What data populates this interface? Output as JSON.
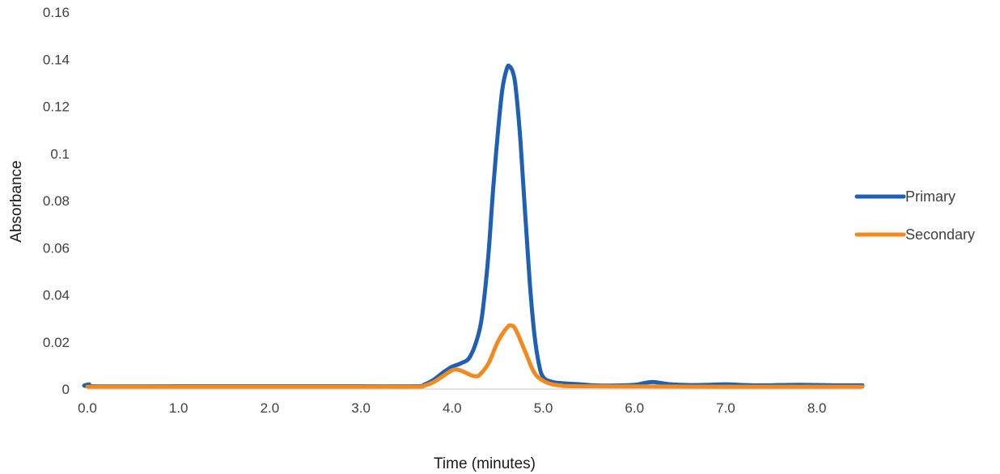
{
  "chart_data": {
    "type": "line",
    "title": "",
    "xlabel": "Time (minutes)",
    "ylabel": "Absorbance",
    "xlim": [
      0,
      8.5
    ],
    "ylim": [
      0,
      0.16
    ],
    "x_ticks": [
      0,
      1,
      2,
      3,
      4,
      5,
      6,
      7,
      8
    ],
    "x_tick_labels": [
      "0.0",
      "1.0",
      "2.0",
      "3.0",
      "4.0",
      "5.0",
      "6.0",
      "7.0",
      "8.0"
    ],
    "y_ticks": [
      0,
      0.02,
      0.04,
      0.06,
      0.08,
      0.1,
      0.12,
      0.14,
      0.16
    ],
    "y_tick_labels": [
      "0",
      "0.02",
      "0.04",
      "0.06",
      "0.08",
      "0.1",
      "0.12",
      "0.14",
      "0.16"
    ],
    "grid": false,
    "legend_position": "right",
    "series": [
      {
        "name": "Primary",
        "color": "#1F5FB4",
        "points": [
          [
            0,
            0.0015
          ],
          [
            0.02,
            0.002
          ],
          [
            0.05,
            0.0012
          ],
          [
            1,
            0.0012
          ],
          [
            2,
            0.0012
          ],
          [
            3,
            0.0012
          ],
          [
            3.6,
            0.0012
          ],
          [
            3.7,
            0.002
          ],
          [
            3.8,
            0.004
          ],
          [
            3.9,
            0.007
          ],
          [
            4.0,
            0.0095
          ],
          [
            4.1,
            0.011
          ],
          [
            4.2,
            0.014
          ],
          [
            4.3,
            0.025
          ],
          [
            4.35,
            0.038
          ],
          [
            4.4,
            0.058
          ],
          [
            4.45,
            0.085
          ],
          [
            4.5,
            0.108
          ],
          [
            4.55,
            0.127
          ],
          [
            4.6,
            0.136
          ],
          [
            4.63,
            0.137
          ],
          [
            4.67,
            0.134
          ],
          [
            4.7,
            0.127
          ],
          [
            4.75,
            0.105
          ],
          [
            4.8,
            0.075
          ],
          [
            4.85,
            0.046
          ],
          [
            4.9,
            0.024
          ],
          [
            4.95,
            0.011
          ],
          [
            5.0,
            0.005
          ],
          [
            5.1,
            0.003
          ],
          [
            5.2,
            0.0025
          ],
          [
            5.4,
            0.002
          ],
          [
            5.6,
            0.0015
          ],
          [
            5.8,
            0.0015
          ],
          [
            6.0,
            0.0018
          ],
          [
            6.1,
            0.0025
          ],
          [
            6.2,
            0.003
          ],
          [
            6.3,
            0.0025
          ],
          [
            6.4,
            0.002
          ],
          [
            6.6,
            0.0017
          ],
          [
            6.8,
            0.0018
          ],
          [
            7.0,
            0.002
          ],
          [
            7.3,
            0.0016
          ],
          [
            7.6,
            0.0017
          ],
          [
            7.8,
            0.0018
          ],
          [
            8.0,
            0.0017
          ],
          [
            8.2,
            0.0016
          ],
          [
            8.5,
            0.0016
          ]
        ]
      },
      {
        "name": "Secondary",
        "color": "#F28A1E",
        "points": [
          [
            0,
            0.001
          ],
          [
            1,
            0.001
          ],
          [
            2,
            0.001
          ],
          [
            3,
            0.001
          ],
          [
            3.6,
            0.001
          ],
          [
            3.7,
            0.0015
          ],
          [
            3.8,
            0.003
          ],
          [
            3.9,
            0.0055
          ],
          [
            4.0,
            0.008
          ],
          [
            4.05,
            0.0083
          ],
          [
            4.1,
            0.0078
          ],
          [
            4.2,
            0.006
          ],
          [
            4.25,
            0.0055
          ],
          [
            4.3,
            0.006
          ],
          [
            4.4,
            0.011
          ],
          [
            4.5,
            0.02
          ],
          [
            4.6,
            0.026
          ],
          [
            4.65,
            0.027
          ],
          [
            4.7,
            0.025
          ],
          [
            4.8,
            0.016
          ],
          [
            4.9,
            0.007
          ],
          [
            5.0,
            0.0035
          ],
          [
            5.1,
            0.002
          ],
          [
            5.2,
            0.0015
          ],
          [
            5.3,
            0.0012
          ],
          [
            6.0,
            0.0011
          ],
          [
            7.0,
            0.001
          ],
          [
            8.0,
            0.001
          ],
          [
            8.5,
            0.001
          ]
        ]
      }
    ]
  }
}
